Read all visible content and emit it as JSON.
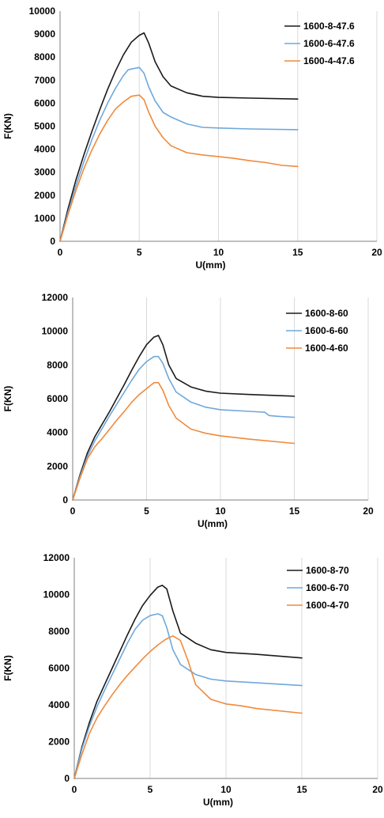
{
  "chart_data": [
    {
      "type": "line",
      "xlabel": "U(mm)",
      "ylabel": "F(KN)",
      "xlim": [
        0,
        20
      ],
      "ylim": [
        0,
        10000
      ],
      "xticks": [
        0,
        5,
        10,
        15,
        20
      ],
      "yticks": [
        0,
        1000,
        2000,
        3000,
        4000,
        5000,
        6000,
        7000,
        8000,
        9000,
        10000
      ],
      "grid": "vertical",
      "legend_position": "top-right",
      "series": [
        {
          "name": "1600-8-47.6",
          "color": "#1a1a1a",
          "x": [
            0,
            0.5,
            1,
            1.5,
            2,
            2.5,
            3,
            3.5,
            4,
            4.5,
            5,
            5.3,
            5.6,
            6,
            6.5,
            7,
            8,
            9,
            10,
            12,
            15
          ],
          "y": [
            0,
            1400,
            2650,
            3750,
            4750,
            5700,
            6600,
            7400,
            8100,
            8650,
            8950,
            9050,
            8600,
            7800,
            7150,
            6750,
            6450,
            6300,
            6250,
            6220,
            6180
          ]
        },
        {
          "name": "1600-6-47.6",
          "color": "#6fa8dc",
          "x": [
            0,
            0.5,
            1,
            1.5,
            2,
            2.5,
            3,
            3.5,
            4,
            4.3,
            4.6,
            5,
            5.3,
            5.6,
            6,
            6.5,
            7,
            8,
            9,
            10,
            12,
            15
          ],
          "y": [
            0,
            1250,
            2400,
            3450,
            4400,
            5250,
            6000,
            6650,
            7200,
            7450,
            7500,
            7550,
            7300,
            6700,
            6100,
            5600,
            5400,
            5100,
            4950,
            4920,
            4880,
            4850
          ]
        },
        {
          "name": "1600-4-47.6",
          "color": "#f08a3c",
          "x": [
            0,
            0.5,
            1,
            1.5,
            2,
            2.5,
            3,
            3.5,
            4,
            4.5,
            5,
            5.3,
            5.6,
            6,
            6.5,
            7,
            8,
            9,
            10,
            11,
            12,
            13,
            14,
            15
          ],
          "y": [
            0,
            1150,
            2200,
            3150,
            3950,
            4650,
            5250,
            5750,
            6050,
            6300,
            6350,
            6150,
            5600,
            5000,
            4500,
            4150,
            3850,
            3750,
            3680,
            3600,
            3500,
            3420,
            3300,
            3250
          ]
        }
      ]
    },
    {
      "type": "line",
      "xlabel": "U(mm)",
      "ylabel": "F(KN)",
      "xlim": [
        0,
        20
      ],
      "ylim": [
        0,
        12000
      ],
      "xticks": [
        0,
        5,
        10,
        15,
        20
      ],
      "yticks": [
        0,
        2000,
        4000,
        6000,
        8000,
        10000,
        12000
      ],
      "grid": "vertical",
      "legend_position": "top-right",
      "series": [
        {
          "name": "1600-8-60",
          "color": "#1a1a1a",
          "x": [
            0,
            0.5,
            1,
            1.5,
            2,
            2.5,
            3,
            3.5,
            4,
            4.5,
            5,
            5.5,
            5.8,
            6.1,
            6.5,
            7,
            8,
            9,
            10,
            12,
            15
          ],
          "y": [
            0,
            1500,
            2800,
            3750,
            4500,
            5250,
            6050,
            6850,
            7700,
            8500,
            9200,
            9650,
            9750,
            9200,
            8000,
            7200,
            6700,
            6450,
            6330,
            6250,
            6150
          ]
        },
        {
          "name": "1600-6-60",
          "color": "#6fa8dc",
          "x": [
            0,
            0.5,
            1,
            1.5,
            2,
            2.5,
            3,
            3.5,
            4,
            4.5,
            5,
            5.5,
            5.8,
            6.1,
            6.5,
            7,
            8,
            9,
            10,
            12,
            13,
            13.3,
            14,
            15
          ],
          "y": [
            0,
            1400,
            2600,
            3500,
            4250,
            5000,
            5700,
            6400,
            7100,
            7750,
            8200,
            8500,
            8500,
            8100,
            7200,
            6400,
            5800,
            5500,
            5350,
            5250,
            5200,
            5000,
            4950,
            4900
          ]
        },
        {
          "name": "1600-4-60",
          "color": "#f08a3c",
          "x": [
            0,
            0.5,
            1,
            1.5,
            2,
            2.5,
            3,
            3.5,
            4,
            4.5,
            5,
            5.5,
            5.8,
            6.1,
            6.5,
            7,
            8,
            9,
            10,
            12,
            15
          ],
          "y": [
            0,
            1300,
            2450,
            3150,
            3650,
            4200,
            4750,
            5250,
            5800,
            6250,
            6600,
            6950,
            6950,
            6500,
            5600,
            4850,
            4200,
            3950,
            3800,
            3600,
            3350
          ]
        }
      ]
    },
    {
      "type": "line",
      "xlabel": "U(mm)",
      "ylabel": "F(KN)",
      "xlim": [
        0,
        20
      ],
      "ylim": [
        0,
        12000
      ],
      "xticks": [
        0,
        5,
        10,
        15,
        20
      ],
      "yticks": [
        0,
        2000,
        4000,
        6000,
        8000,
        10000,
        12000
      ],
      "grid": "vertical",
      "legend_position": "top-right",
      "series": [
        {
          "name": "1600-8-70",
          "color": "#1a1a1a",
          "x": [
            0,
            0.5,
            1,
            1.5,
            2,
            2.5,
            3,
            3.5,
            4,
            4.5,
            5,
            5.5,
            5.8,
            6.1,
            6.5,
            7,
            8,
            9,
            10,
            12,
            15
          ],
          "y": [
            0,
            1700,
            3050,
            4200,
            5100,
            6000,
            6900,
            7800,
            8650,
            9400,
            9950,
            10400,
            10500,
            10300,
            9100,
            7900,
            7350,
            7000,
            6850,
            6750,
            6550
          ]
        },
        {
          "name": "1600-6-70",
          "color": "#6fa8dc",
          "x": [
            0,
            0.5,
            1,
            1.5,
            2,
            2.5,
            3,
            3.5,
            4,
            4.5,
            5,
            5.5,
            5.8,
            6.1,
            6.5,
            7,
            8,
            9,
            10,
            12,
            15
          ],
          "y": [
            0,
            1600,
            2850,
            3900,
            4800,
            5650,
            6500,
            7350,
            8100,
            8600,
            8850,
            8950,
            8850,
            8200,
            7000,
            6200,
            5650,
            5400,
            5300,
            5200,
            5050
          ]
        },
        {
          "name": "1600-4-70",
          "color": "#f08a3c",
          "x": [
            0,
            0.5,
            1,
            1.5,
            2,
            2.5,
            3,
            3.5,
            4,
            4.5,
            5,
            5.5,
            6,
            6.5,
            7,
            7.5,
            8,
            9,
            10,
            11,
            12,
            15
          ],
          "y": [
            0,
            1300,
            2450,
            3300,
            3950,
            4550,
            5100,
            5600,
            6050,
            6500,
            6900,
            7250,
            7550,
            7750,
            7500,
            6400,
            5100,
            4300,
            4050,
            3950,
            3800,
            3550
          ]
        }
      ]
    }
  ]
}
